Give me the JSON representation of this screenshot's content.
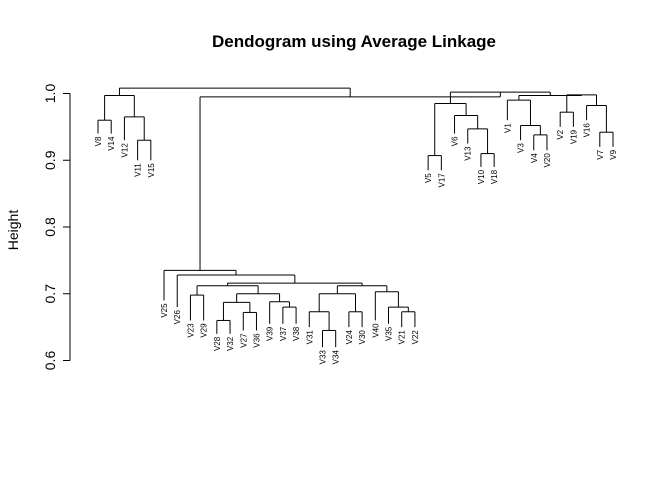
{
  "chart_data": {
    "type": "dendrogram",
    "title": "Dendogram using Average Linkage",
    "ylabel": "Height",
    "xlabel": "",
    "ylim": [
      0.6,
      1.0
    ],
    "yticks": [
      "0.6",
      "0.7",
      "0.8",
      "0.9",
      "1.0"
    ],
    "leaves": [
      {
        "id": "V8",
        "label": "V8",
        "h": 0.94
      },
      {
        "id": "V14",
        "label": "V14",
        "h": 0.94
      },
      {
        "id": "V12",
        "label": "V12",
        "h": 0.93
      },
      {
        "id": "V11",
        "label": "V11",
        "h": 0.9
      },
      {
        "id": "V15",
        "label": "V15",
        "h": 0.9
      },
      {
        "id": "V25",
        "label": "V25",
        "h": 0.69
      },
      {
        "id": "V26",
        "label": "V26",
        "h": 0.68
      },
      {
        "id": "V23",
        "label": "V23",
        "h": 0.66
      },
      {
        "id": "V29",
        "label": "V29",
        "h": 0.66
      },
      {
        "id": "V28",
        "label": "V28",
        "h": 0.64
      },
      {
        "id": "V32",
        "label": "V32",
        "h": 0.64
      },
      {
        "id": "V27",
        "label": "V27",
        "h": 0.645
      },
      {
        "id": "V36",
        "label": "V36",
        "h": 0.645
      },
      {
        "id": "V39",
        "label": "V39",
        "h": 0.655
      },
      {
        "id": "V37",
        "label": "V37",
        "h": 0.655
      },
      {
        "id": "V38",
        "label": "V38",
        "h": 0.655
      },
      {
        "id": "V31",
        "label": "V31",
        "h": 0.65
      },
      {
        "id": "V33",
        "label": "V33",
        "h": 0.62
      },
      {
        "id": "V34",
        "label": "V34",
        "h": 0.62
      },
      {
        "id": "V24",
        "label": "V24",
        "h": 0.65
      },
      {
        "id": "V30",
        "label": "V30",
        "h": 0.65
      },
      {
        "id": "V40",
        "label": "V40",
        "h": 0.66
      },
      {
        "id": "V35",
        "label": "V35",
        "h": 0.655
      },
      {
        "id": "V21",
        "label": "V21",
        "h": 0.65
      },
      {
        "id": "V22",
        "label": "V22",
        "h": 0.65
      },
      {
        "id": "V5",
        "label": "V5",
        "h": 0.885
      },
      {
        "id": "V17",
        "label": "V17",
        "h": 0.885
      },
      {
        "id": "V6",
        "label": "V6",
        "h": 0.94
      },
      {
        "id": "V13",
        "label": "V13",
        "h": 0.925
      },
      {
        "id": "V10",
        "label": "V10",
        "h": 0.89
      },
      {
        "id": "V18",
        "label": "V18",
        "h": 0.89
      },
      {
        "id": "V1",
        "label": "V1",
        "h": 0.96
      },
      {
        "id": "V3",
        "label": "V3",
        "h": 0.93
      },
      {
        "id": "V4",
        "label": "V4",
        "h": 0.915
      },
      {
        "id": "V20",
        "label": "V20",
        "h": 0.915
      },
      {
        "id": "V2",
        "label": "V2",
        "h": 0.95
      },
      {
        "id": "V19",
        "label": "V19",
        "h": 0.95
      },
      {
        "id": "V16",
        "label": "V16",
        "h": 0.96
      },
      {
        "id": "V7",
        "label": "V7",
        "h": 0.92
      },
      {
        "id": "V9",
        "label": "V9",
        "h": 0.92
      }
    ],
    "merges": [
      {
        "id": "a1",
        "height": 0.96,
        "children": [
          "V8",
          "V14"
        ]
      },
      {
        "id": "a2",
        "height": 0.93,
        "children": [
          "V11",
          "V15"
        ]
      },
      {
        "id": "a3",
        "height": 0.965,
        "children": [
          "V12",
          "a2"
        ]
      },
      {
        "id": "a4",
        "height": 0.997,
        "children": [
          "a1",
          "a3"
        ]
      },
      {
        "id": "b1",
        "height": 0.698,
        "children": [
          "V23",
          "V29"
        ]
      },
      {
        "id": "b2",
        "height": 0.66,
        "children": [
          "V28",
          "V32"
        ]
      },
      {
        "id": "b3",
        "height": 0.672,
        "children": [
          "V27",
          "V36"
        ]
      },
      {
        "id": "b4",
        "height": 0.687,
        "children": [
          "b2",
          "b3"
        ]
      },
      {
        "id": "b5",
        "height": 0.68,
        "children": [
          "V37",
          "V38"
        ]
      },
      {
        "id": "b6",
        "height": 0.688,
        "children": [
          "V39",
          "b5"
        ]
      },
      {
        "id": "b7",
        "height": 0.7,
        "children": [
          "b4",
          "b6"
        ]
      },
      {
        "id": "b8",
        "height": 0.712,
        "children": [
          "b1",
          "b7"
        ]
      },
      {
        "id": "b9",
        "height": 0.645,
        "children": [
          "V33",
          "V34"
        ]
      },
      {
        "id": "b10",
        "height": 0.673,
        "children": [
          "V31",
          "b9"
        ]
      },
      {
        "id": "b11",
        "height": 0.673,
        "children": [
          "V24",
          "V30"
        ]
      },
      {
        "id": "b12",
        "height": 0.7,
        "children": [
          "b10",
          "b11"
        ]
      },
      {
        "id": "b13",
        "height": 0.673,
        "children": [
          "V21",
          "V22"
        ]
      },
      {
        "id": "b14",
        "height": 0.68,
        "children": [
          "V35",
          "b13"
        ]
      },
      {
        "id": "b15",
        "height": 0.703,
        "children": [
          "V40",
          "b14"
        ]
      },
      {
        "id": "b16",
        "height": 0.712,
        "children": [
          "b12",
          "b15"
        ]
      },
      {
        "id": "b17",
        "height": 0.716,
        "children": [
          "b8",
          "b16"
        ]
      },
      {
        "id": "b18",
        "height": 0.728,
        "children": [
          "V26",
          "b17"
        ]
      },
      {
        "id": "b19",
        "height": 0.735,
        "children": [
          "V25",
          "b18"
        ]
      },
      {
        "id": "c1",
        "height": 0.907,
        "children": [
          "V5",
          "V17"
        ]
      },
      {
        "id": "c2",
        "height": 0.91,
        "children": [
          "V10",
          "V18"
        ]
      },
      {
        "id": "c3",
        "height": 0.947,
        "children": [
          "V13",
          "c2"
        ]
      },
      {
        "id": "c4",
        "height": 0.967,
        "children": [
          "V6",
          "c3"
        ]
      },
      {
        "id": "c5",
        "height": 0.985,
        "children": [
          "c1",
          "c4"
        ]
      },
      {
        "id": "c6",
        "height": 0.938,
        "children": [
          "V4",
          "V20"
        ]
      },
      {
        "id": "c7",
        "height": 0.952,
        "children": [
          "V3",
          "c6"
        ]
      },
      {
        "id": "c8",
        "height": 0.99,
        "children": [
          "V1",
          "c7"
        ]
      },
      {
        "id": "c9",
        "height": 0.972,
        "children": [
          "V2",
          "V19"
        ]
      },
      {
        "id": "c10",
        "height": 0.942,
        "children": [
          "V7",
          "V9"
        ]
      },
      {
        "id": "c11",
        "height": 0.982,
        "children": [
          "V16",
          "c10"
        ]
      },
      {
        "id": "c12",
        "height": 0.998,
        "children": [
          "c9",
          "c11"
        ]
      },
      {
        "id": "c13",
        "height": 0.997,
        "children": [
          "c8",
          "c12"
        ]
      },
      {
        "id": "c14",
        "height": 1.002,
        "children": [
          "c5",
          "c13"
        ]
      },
      {
        "id": "d1",
        "height": 0.995,
        "children": [
          "b19",
          "c14"
        ]
      },
      {
        "id": "root",
        "height": 1.008,
        "children": [
          "a4",
          "d1"
        ]
      }
    ]
  }
}
